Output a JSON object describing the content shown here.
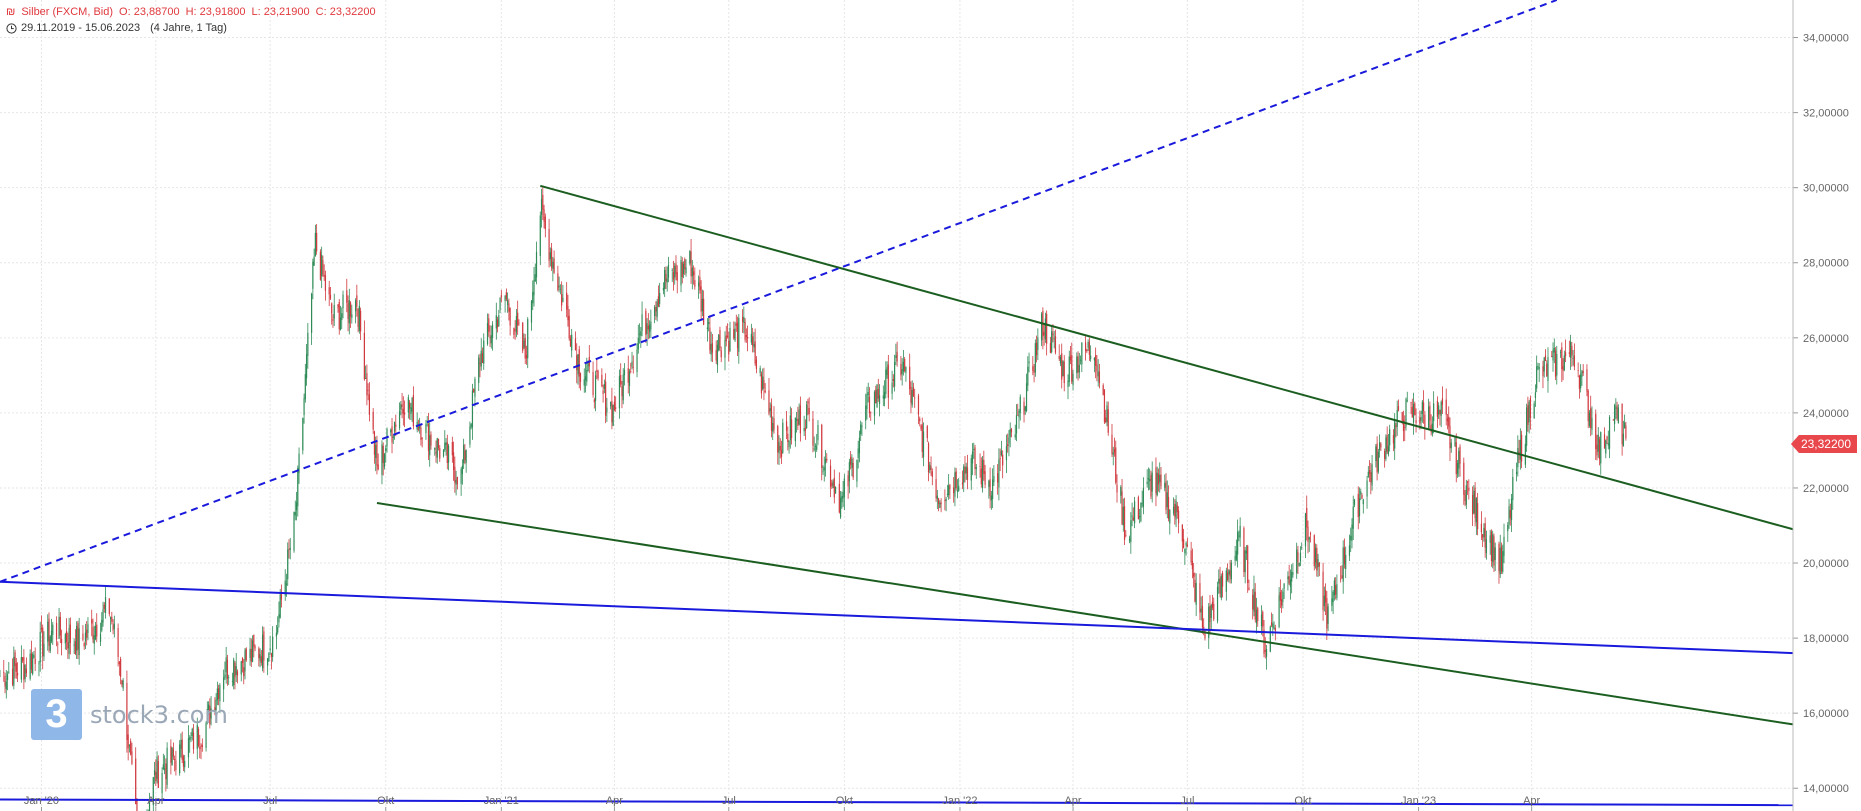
{
  "header": {
    "symbol_icon": "currency-icon",
    "title": "Silber (FXCM, Bid)",
    "open": "O: 23,88700",
    "high": "H: 23,91800",
    "low": "L: 23,21900",
    "close": "C: 23,32200",
    "range_icon": "clock-icon",
    "range": "29.11.2019 - 15.06.2023",
    "period": "(4 Jahre, 1 Tag)"
  },
  "last_price_badge": "23,32200",
  "watermark": {
    "logo_glyph": "3",
    "text": "stock3.com"
  },
  "colors": {
    "up": "#2e8b57",
    "down": "#d0393e",
    "trend_green": "#1b5e20",
    "trend_blue": "#1a1adc",
    "badge": "#e8474c"
  },
  "chart_data": {
    "type": "candlestick",
    "x_axis_labels": [
      "Jan '20",
      "Apr",
      "Jul",
      "Okt",
      "Jan '21",
      "Apr",
      "Jul",
      "Okt",
      "Jan '22",
      "Apr",
      "Jul",
      "Okt",
      "Jan '23",
      "Apr"
    ],
    "x_axis_dates": [
      "2020-01-01",
      "2020-04-01",
      "2020-07-01",
      "2020-10-01",
      "2021-01-01",
      "2021-04-01",
      "2021-07-01",
      "2021-10-01",
      "2022-01-01",
      "2022-04-01",
      "2022-07-01",
      "2022-10-01",
      "2023-01-01",
      "2023-04-01"
    ],
    "x_range": [
      "2019-11-29",
      "2023-10-26"
    ],
    "y_ticks": [
      14,
      16,
      18,
      20,
      22,
      24,
      26,
      28,
      30,
      32,
      34
    ],
    "y_tick_labels": [
      "14,00000",
      "16,00000",
      "18,00000",
      "20,00000",
      "22,00000",
      "24,00000",
      "26,00000",
      "28,00000",
      "30,00000",
      "32,00000",
      "34,00000"
    ],
    "ylim": [
      13.5,
      35
    ],
    "grid": true,
    "last_price": 23.322,
    "series_close": [
      {
        "date": "2019-11-29",
        "value": 17.0
      },
      {
        "date": "2019-12-20",
        "value": 17.3
      },
      {
        "date": "2020-01-10",
        "value": 18.2
      },
      {
        "date": "2020-02-01",
        "value": 17.9
      },
      {
        "date": "2020-02-24",
        "value": 18.8
      },
      {
        "date": "2020-03-05",
        "value": 17.0
      },
      {
        "date": "2020-03-18",
        "value": 12.5
      },
      {
        "date": "2020-04-01",
        "value": 14.4
      },
      {
        "date": "2020-04-20",
        "value": 14.9
      },
      {
        "date": "2020-05-10",
        "value": 15.6
      },
      {
        "date": "2020-05-25",
        "value": 17.2
      },
      {
        "date": "2020-06-15",
        "value": 17.5
      },
      {
        "date": "2020-07-05",
        "value": 18.0
      },
      {
        "date": "2020-07-21",
        "value": 21.2
      },
      {
        "date": "2020-08-06",
        "value": 28.5
      },
      {
        "date": "2020-08-20",
        "value": 26.5
      },
      {
        "date": "2020-09-08",
        "value": 27.0
      },
      {
        "date": "2020-09-24",
        "value": 22.5
      },
      {
        "date": "2020-10-15",
        "value": 24.4
      },
      {
        "date": "2020-11-02",
        "value": 23.5
      },
      {
        "date": "2020-11-30",
        "value": 22.3
      },
      {
        "date": "2020-12-15",
        "value": 25.5
      },
      {
        "date": "2021-01-04",
        "value": 27.1
      },
      {
        "date": "2021-01-20",
        "value": 25.5
      },
      {
        "date": "2021-02-01",
        "value": 29.4
      },
      {
        "date": "2021-02-15",
        "value": 27.5
      },
      {
        "date": "2021-03-05",
        "value": 25.2
      },
      {
        "date": "2021-03-31",
        "value": 24.1
      },
      {
        "date": "2021-04-20",
        "value": 26.0
      },
      {
        "date": "2021-05-10",
        "value": 27.5
      },
      {
        "date": "2021-06-01",
        "value": 28.0
      },
      {
        "date": "2021-06-18",
        "value": 25.8
      },
      {
        "date": "2021-07-15",
        "value": 26.2
      },
      {
        "date": "2021-08-10",
        "value": 23.2
      },
      {
        "date": "2021-09-01",
        "value": 24.0
      },
      {
        "date": "2021-09-29",
        "value": 21.6
      },
      {
        "date": "2021-10-20",
        "value": 24.2
      },
      {
        "date": "2021-11-16",
        "value": 25.3
      },
      {
        "date": "2021-12-15",
        "value": 21.8
      },
      {
        "date": "2022-01-10",
        "value": 22.7
      },
      {
        "date": "2022-01-27",
        "value": 22.1
      },
      {
        "date": "2022-02-15",
        "value": 23.6
      },
      {
        "date": "2022-03-08",
        "value": 26.4
      },
      {
        "date": "2022-03-25",
        "value": 25.1
      },
      {
        "date": "2022-04-18",
        "value": 25.8
      },
      {
        "date": "2022-05-13",
        "value": 20.8
      },
      {
        "date": "2022-06-03",
        "value": 22.2
      },
      {
        "date": "2022-06-25",
        "value": 21.2
      },
      {
        "date": "2022-07-14",
        "value": 18.2
      },
      {
        "date": "2022-08-12",
        "value": 20.6
      },
      {
        "date": "2022-09-01",
        "value": 17.8
      },
      {
        "date": "2022-09-19",
        "value": 19.6
      },
      {
        "date": "2022-10-04",
        "value": 21.0
      },
      {
        "date": "2022-10-21",
        "value": 18.5
      },
      {
        "date": "2022-11-15",
        "value": 21.8
      },
      {
        "date": "2022-12-05",
        "value": 23.2
      },
      {
        "date": "2022-12-22",
        "value": 24.0
      },
      {
        "date": "2023-01-20",
        "value": 23.9
      },
      {
        "date": "2023-02-10",
        "value": 21.8
      },
      {
        "date": "2023-03-08",
        "value": 19.9
      },
      {
        "date": "2023-03-20",
        "value": 22.5
      },
      {
        "date": "2023-04-05",
        "value": 25.0
      },
      {
        "date": "2023-04-18",
        "value": 25.3
      },
      {
        "date": "2023-05-05",
        "value": 25.6
      },
      {
        "date": "2023-05-25",
        "value": 23.0
      },
      {
        "date": "2023-06-05",
        "value": 24.0
      },
      {
        "date": "2023-06-15",
        "value": 23.32
      }
    ],
    "trendlines": [
      {
        "color": "trend_green",
        "style": "solid",
        "from": {
          "date": "2021-02-01",
          "value": 30.05
        },
        "to": {
          "date": "2023-10-26",
          "value": 20.9
        }
      },
      {
        "color": "trend_green",
        "style": "solid",
        "from": {
          "date": "2020-09-24",
          "value": 21.6
        },
        "to": {
          "date": "2023-10-26",
          "value": 15.7
        }
      },
      {
        "color": "trend_blue",
        "style": "dashed",
        "from": {
          "date": "2019-11-29",
          "value": 19.5
        },
        "to": {
          "date": "2023-04-21",
          "value": 35.0
        }
      },
      {
        "color": "trend_blue",
        "style": "solid",
        "from": {
          "date": "2019-11-29",
          "value": 19.5
        },
        "to": {
          "date": "2023-10-26",
          "value": 17.6
        }
      },
      {
        "color": "trend_blue",
        "style": "solid",
        "from": {
          "date": "2019-11-29",
          "value": 13.7
        },
        "to": {
          "date": "2023-10-26",
          "value": 13.55
        }
      }
    ]
  }
}
